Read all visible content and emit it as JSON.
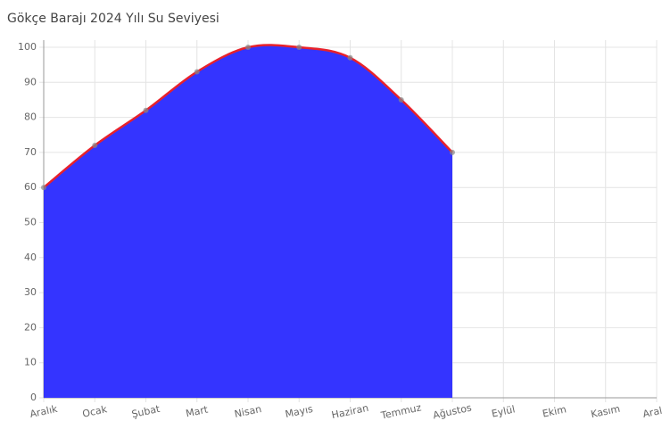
{
  "chart_data": {
    "type": "area",
    "title": "Gökçe Barajı 2024 Yılı Su Seviyesi",
    "categories": [
      "Aralık",
      "Ocak",
      "Şubat",
      "Mart",
      "Nisan",
      "Mayıs",
      "Haziran",
      "Temmuz",
      "Ağustos",
      "Eylül",
      "Ekim",
      "Kasım",
      "Aralık"
    ],
    "values": [
      60,
      72,
      82,
      93,
      100,
      100,
      97,
      85,
      70,
      null,
      null,
      null,
      null
    ],
    "color": "#3434ff",
    "line_color": "#e8212b",
    "ylim": [
      0,
      100
    ],
    "yticks": [
      0,
      10,
      20,
      30,
      40,
      50,
      60,
      70,
      80,
      90,
      100
    ],
    "grid": true
  }
}
